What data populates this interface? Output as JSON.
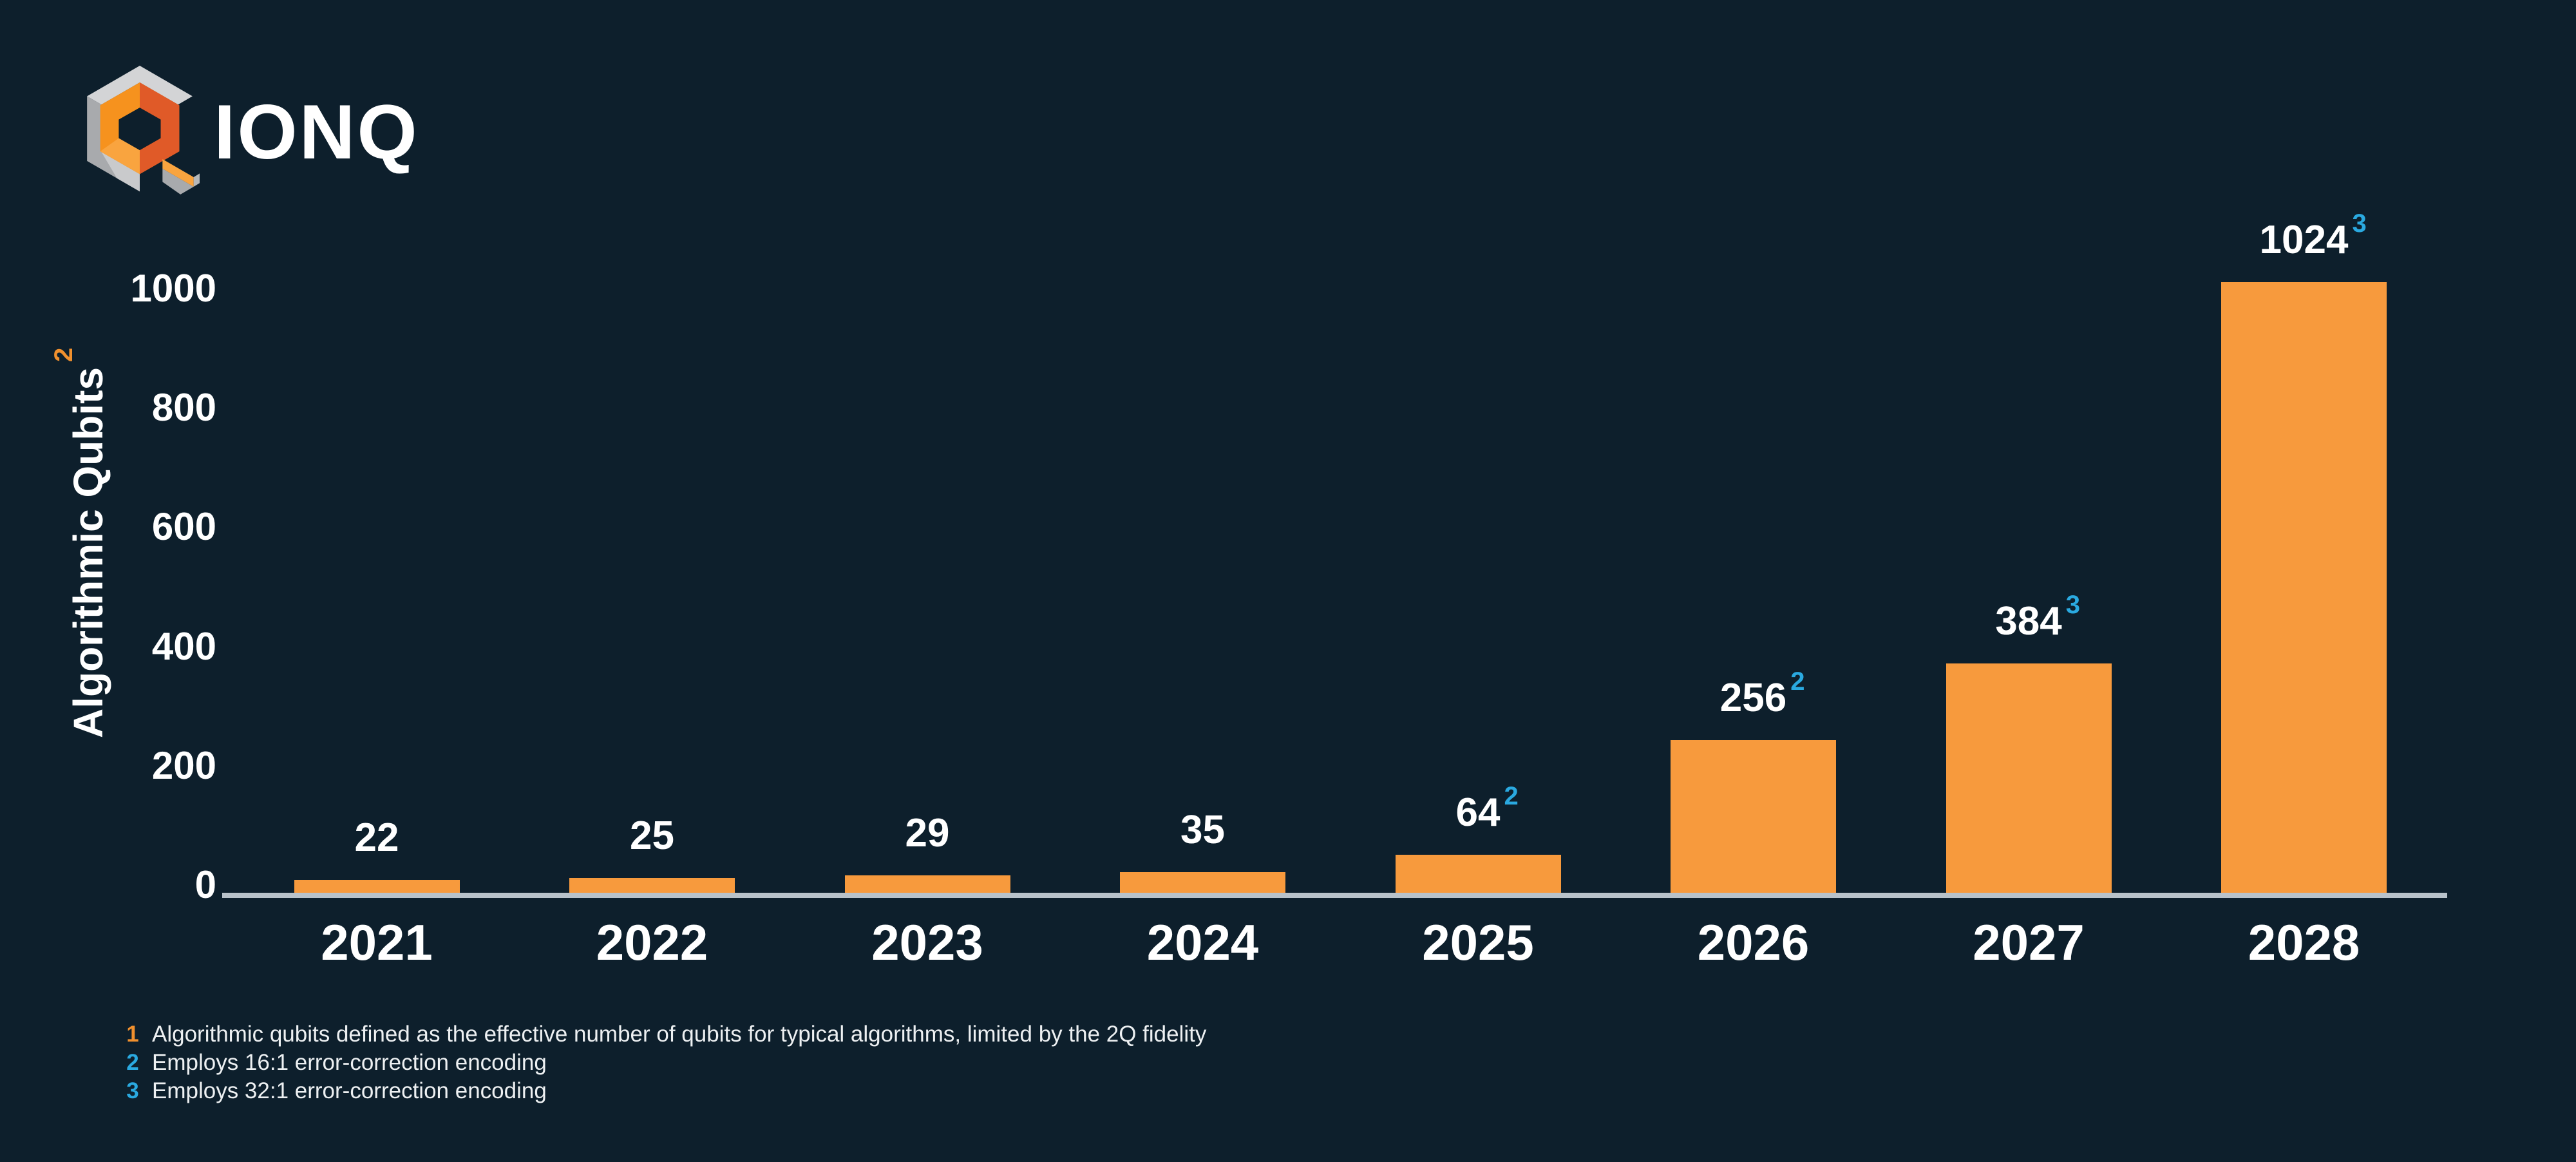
{
  "brand": {
    "name": "IONQ",
    "logo_icon": "ionq-hexagon-q-icon"
  },
  "chart_data": {
    "type": "bar",
    "title": "",
    "ylabel": "Algorithmic Qubits",
    "ylabel_superscript": "2",
    "ylabel_superscript_color": "#f0902e",
    "categories": [
      "2021",
      "2022",
      "2023",
      "2024",
      "2025",
      "2026",
      "2027",
      "2028"
    ],
    "series": [
      {
        "name": "Algorithmic Qubits",
        "values": [
          22,
          25,
          29,
          35,
          64,
          256,
          384,
          1024
        ],
        "value_superscripts": [
          "",
          "",
          "",
          "",
          "2",
          "2",
          "3",
          "3"
        ]
      }
    ],
    "yticks": [
      0,
      200,
      400,
      600,
      800,
      1000
    ],
    "ylim": [
      0,
      1080
    ],
    "grid": "off",
    "legend": "none",
    "bar_color": "#f79a3d",
    "value_label_color": "#ffffff",
    "value_superscript_color": "#2aa9e0",
    "axis_line_color": "#b8c2ca",
    "background_color": "#0d1f2c"
  },
  "footnotes": [
    {
      "marker": "1",
      "marker_color": "#f0902e",
      "text": "Algorithmic qubits defined as the effective number of qubits for typical algorithms, limited by the 2Q fidelity"
    },
    {
      "marker": "2",
      "marker_color": "#2aa9e0",
      "text": "Employs 16:1 error-correction encoding"
    },
    {
      "marker": "3",
      "marker_color": "#2aa9e0",
      "text": "Employs 32:1 error-correction encoding"
    }
  ]
}
